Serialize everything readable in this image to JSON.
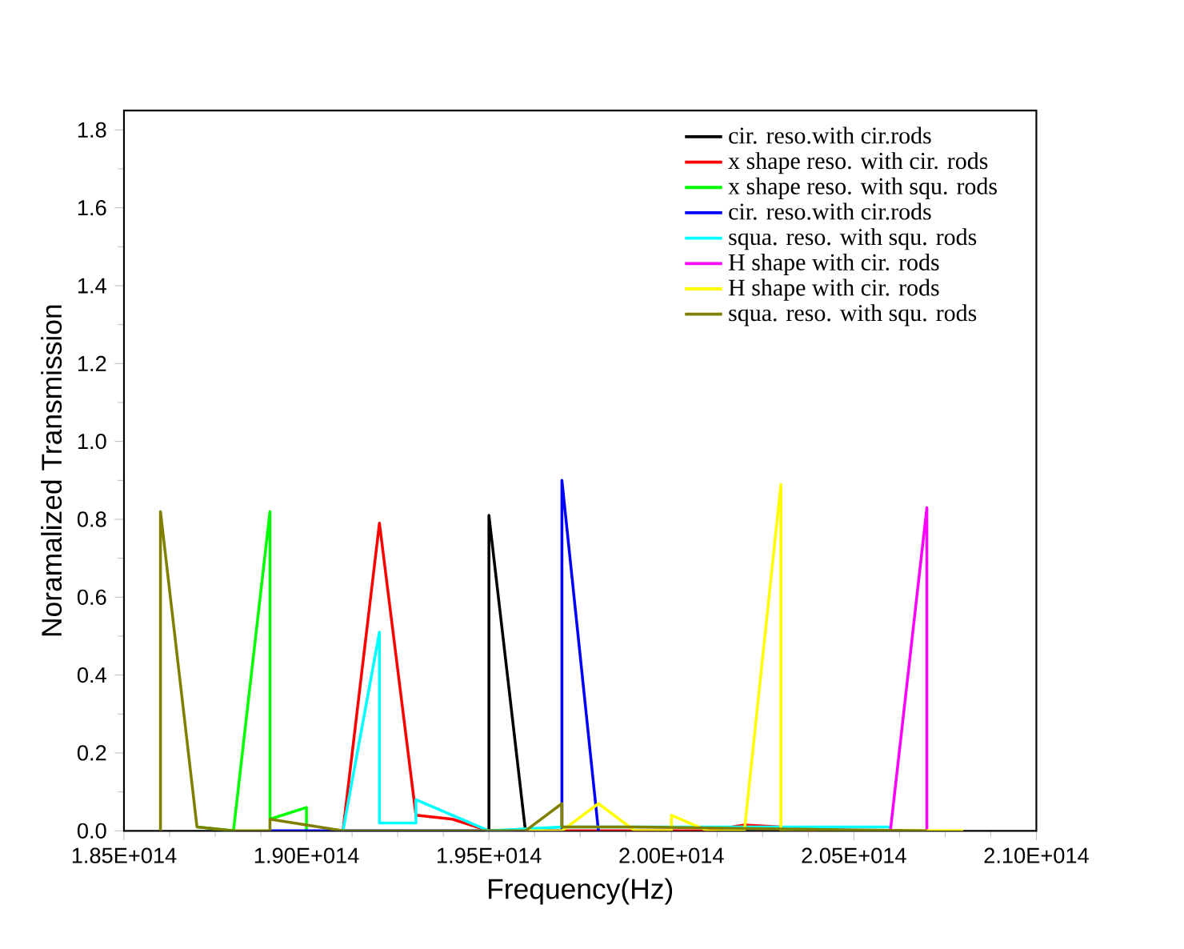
{
  "chart_data": {
    "type": "line",
    "xlabel": "Frequency(Hz)",
    "ylabel": "Noramalized Transmission",
    "xlim": [
      185000000000000.0,
      210000000000000.0
    ],
    "xticks": [
      {
        "value": 185000000000000.0,
        "label": "1.85E+014"
      },
      {
        "value": 190000000000000.0,
        "label": "1.90E+014"
      },
      {
        "value": 195000000000000.0,
        "label": "1.95E+014"
      },
      {
        "value": 200000000000000.0,
        "label": "2.00E+014"
      },
      {
        "value": 205000000000000.0,
        "label": "2.05E+014"
      },
      {
        "value": 210000000000000.0,
        "label": "2.10E+014"
      }
    ],
    "ylim": [
      0,
      1.85
    ],
    "yticks": [
      {
        "value": 0,
        "label": "0.0"
      },
      0.2,
      0.4,
      0.6,
      0.8,
      {
        "value": 1,
        "label": "1.0"
      },
      1.2,
      1.4,
      1.6,
      1.8
    ],
    "legend": "top right",
    "grid": false,
    "marker": "none",
    "line_style": "solid",
    "series": [
      {
        "name": "cir. reso.with cir.rods",
        "color": "#000000",
        "x": [
          195000000000000.0,
          195000000000000.0,
          196000000000000.0
        ],
        "values": [
          0,
          0.81,
          0
        ]
      },
      {
        "name": "x shape reso. with cir. rods",
        "color": "#ff0000",
        "x": [
          191000000000000.0,
          192000000000000.0,
          193000000000000.0,
          194000000000000.0,
          195000000000000.0,
          201000000000000.0,
          202000000000000.0,
          203000000000000.0,
          204000000000000.0
        ],
        "values": [
          0,
          0.79,
          0.04,
          0.03,
          0,
          0,
          0.015,
          0.01,
          0
        ]
      },
      {
        "name": "x shape reso. with squ. rods",
        "color": "#00ff00",
        "x": [
          187000000000000.0,
          188000000000000.0,
          189000000000000.0,
          189000000000000.0,
          190000000000000.0,
          190000000000000.0
        ],
        "values": [
          0.01,
          0,
          0.82,
          0.03,
          0.06,
          0
        ]
      },
      {
        "name": "cir. reso.with cir.rods",
        "color": "#0000ff",
        "x": [
          189000000000000.0,
          190000000000000.0,
          197000000000000.0,
          197000000000000.0,
          198000000000000.0
        ],
        "values": [
          0,
          0,
          0,
          0.9,
          0
        ]
      },
      {
        "name": "squa. reso. with squ. rods",
        "color": "#00ffff",
        "x": [
          191000000000000.0,
          192000000000000.0,
          192000000000000.0,
          193000000000000.0,
          193000000000000.0,
          195000000000000.0,
          197000000000000.0,
          198000000000000.0,
          205000000000000.0,
          206000000000000.0
        ],
        "values": [
          0,
          0.51,
          0.02,
          0.02,
          0.08,
          0,
          0.01,
          0.01,
          0.01,
          0.01
        ]
      },
      {
        "name": "H shape with cir. rods",
        "color": "#ff00ff",
        "x": [
          206000000000000.0,
          207000000000000.0,
          207000000000000.0
        ],
        "values": [
          0,
          0.83,
          0
        ]
      },
      {
        "name": "H shape with cir. rods",
        "color": "#ffff00",
        "x": [
          196000000000000.0,
          197000000000000.0,
          198000000000000.0,
          199000000000000.0,
          200000000000000.0,
          200000000000000.0,
          201000000000000.0,
          202000000000000.0,
          203000000000000.0,
          203000000000000.0,
          208000000000000.0
        ],
        "values": [
          0,
          0,
          0.07,
          0,
          0,
          0.04,
          0,
          0,
          0.89,
          0,
          0
        ]
      },
      {
        "name": "squa. reso. with squ. rods",
        "color": "#808000",
        "x": [
          186000000000000.0,
          186000000000000.0,
          187000000000000.0,
          188000000000000.0,
          189000000000000.0,
          189000000000000.0,
          191000000000000.0,
          196000000000000.0,
          197000000000000.0,
          197000000000000.0,
          199000000000000.0,
          207000000000000.0
        ],
        "values": [
          0,
          0.82,
          0.01,
          0,
          0,
          0.03,
          0,
          0,
          0.07,
          0.01,
          0.01,
          0
        ]
      }
    ]
  }
}
